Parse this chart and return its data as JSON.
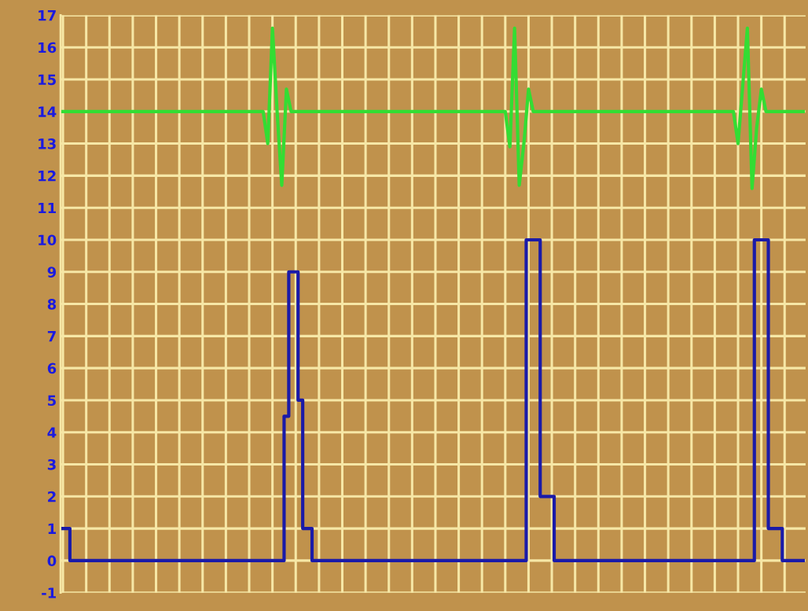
{
  "chart_data": {
    "type": "line",
    "categories": [
      null,
      null,
      null,
      null,
      null,
      null,
      null,
      null,
      null,
      null,
      null,
      null,
      null,
      null,
      null,
      null,
      null,
      null,
      null,
      null,
      null,
      null,
      null,
      null,
      null,
      null,
      null,
      null,
      null,
      null,
      null,
      null,
      null,
      null,
      null,
      null,
      null,
      null,
      null,
      null,
      null,
      null,
      null,
      null,
      null,
      null,
      null,
      null,
      null,
      null,
      null,
      null,
      null,
      null,
      null,
      null,
      null,
      null,
      null,
      null,
      null,
      null,
      null,
      null,
      null,
      null,
      null,
      null,
      null,
      null,
      null,
      null,
      null,
      null,
      null,
      null,
      null,
      null,
      null,
      null,
      null,
      null,
      null,
      null,
      null,
      null,
      null,
      null,
      null,
      null,
      null,
      null,
      null,
      null,
      null,
      null,
      null,
      null,
      null,
      null,
      null,
      null,
      null,
      null,
      null,
      null,
      null,
      null,
      null,
      null,
      null,
      null,
      null,
      null,
      null,
      null,
      null,
      null,
      null,
      null,
      null,
      null,
      null,
      null,
      null,
      null,
      null,
      null,
      null,
      null,
      null,
      null,
      null,
      null,
      null,
      null,
      null,
      null,
      null,
      null,
      null,
      null,
      null,
      null,
      null,
      null,
      null,
      null,
      null,
      null,
      null,
      null,
      null,
      null,
      null,
      null,
      null,
      null,
      null,
      null
    ],
    "series": [
      {
        "color": "#33dd33",
        "values": [
          14,
          14,
          14,
          14,
          14,
          14,
          14,
          14,
          14,
          14,
          14,
          14,
          14,
          14,
          14,
          14,
          14,
          14,
          14,
          14,
          14,
          14,
          14,
          14,
          14,
          14,
          14,
          14,
          14,
          14,
          14,
          14,
          14,
          14,
          14,
          14,
          14,
          14,
          14,
          14,
          14,
          14,
          14,
          14,
          13,
          16.6,
          14,
          11.7,
          14.7,
          14,
          14,
          14,
          14,
          14,
          14,
          14,
          14,
          14,
          14,
          14,
          14,
          14,
          14,
          14,
          14,
          14,
          14,
          14,
          14,
          14,
          14,
          14,
          14,
          14,
          14,
          14,
          14,
          14,
          14,
          14,
          14,
          14,
          14,
          14,
          14,
          14,
          14,
          14,
          14,
          14,
          14,
          14,
          14,
          14,
          14,
          14,
          12.9,
          16.6,
          11.7,
          13,
          14.7,
          14,
          14,
          14,
          14,
          14,
          14,
          14,
          14,
          14,
          14,
          14,
          14,
          14,
          14,
          14,
          14,
          14,
          14,
          14,
          14,
          14,
          14,
          14,
          14,
          14,
          14,
          14,
          14,
          14,
          14,
          14,
          14,
          14,
          14,
          14,
          14,
          14,
          14,
          14,
          14,
          14,
          14,
          14,
          14,
          13,
          14.8,
          16.6,
          11.6,
          13.5,
          14.7,
          14,
          14,
          14,
          14,
          14,
          14,
          14,
          14,
          14
        ]
      },
      {
        "type": "step",
        "color": "#1a1aa8",
        "values": [
          1,
          1,
          0,
          0,
          0,
          0,
          0,
          0,
          0,
          0,
          0,
          0,
          0,
          0,
          0,
          0,
          0,
          0,
          0,
          0,
          0,
          0,
          0,
          0,
          0,
          0,
          0,
          0,
          0,
          0,
          0,
          0,
          0,
          0,
          0,
          0,
          0,
          0,
          0,
          0,
          0,
          0,
          0,
          0,
          0,
          0,
          0,
          0,
          4.5,
          9,
          9,
          5,
          1,
          1,
          0,
          0,
          0,
          0,
          0,
          0,
          0,
          0,
          0,
          0,
          0,
          0,
          0,
          0,
          0,
          0,
          0,
          0,
          0,
          0,
          0,
          0,
          0,
          0,
          0,
          0,
          0,
          0,
          0,
          0,
          0,
          0,
          0,
          0,
          0,
          0,
          0,
          0,
          0,
          0,
          0,
          0,
          0,
          0,
          0,
          0,
          10,
          10,
          10,
          2,
          2,
          2,
          0,
          0,
          0,
          0,
          0,
          0,
          0,
          0,
          0,
          0,
          0,
          0,
          0,
          0,
          0,
          0,
          0,
          0,
          0,
          0,
          0,
          0,
          0,
          0,
          0,
          0,
          0,
          0,
          0,
          0,
          0,
          0,
          0,
          0,
          0,
          0,
          0,
          0,
          0,
          0,
          0,
          0,
          0,
          10,
          10,
          10,
          1,
          1,
          1,
          0,
          0,
          0,
          0,
          0
        ]
      }
    ],
    "ylim": [
      -1,
      17
    ],
    "yticks": [
      -1,
      0,
      1,
      2,
      3,
      4,
      5,
      6,
      7,
      8,
      9,
      10,
      11,
      12,
      13,
      14,
      15,
      16,
      17
    ],
    "grid": true,
    "tick_labels": "y",
    "legend": false
  }
}
